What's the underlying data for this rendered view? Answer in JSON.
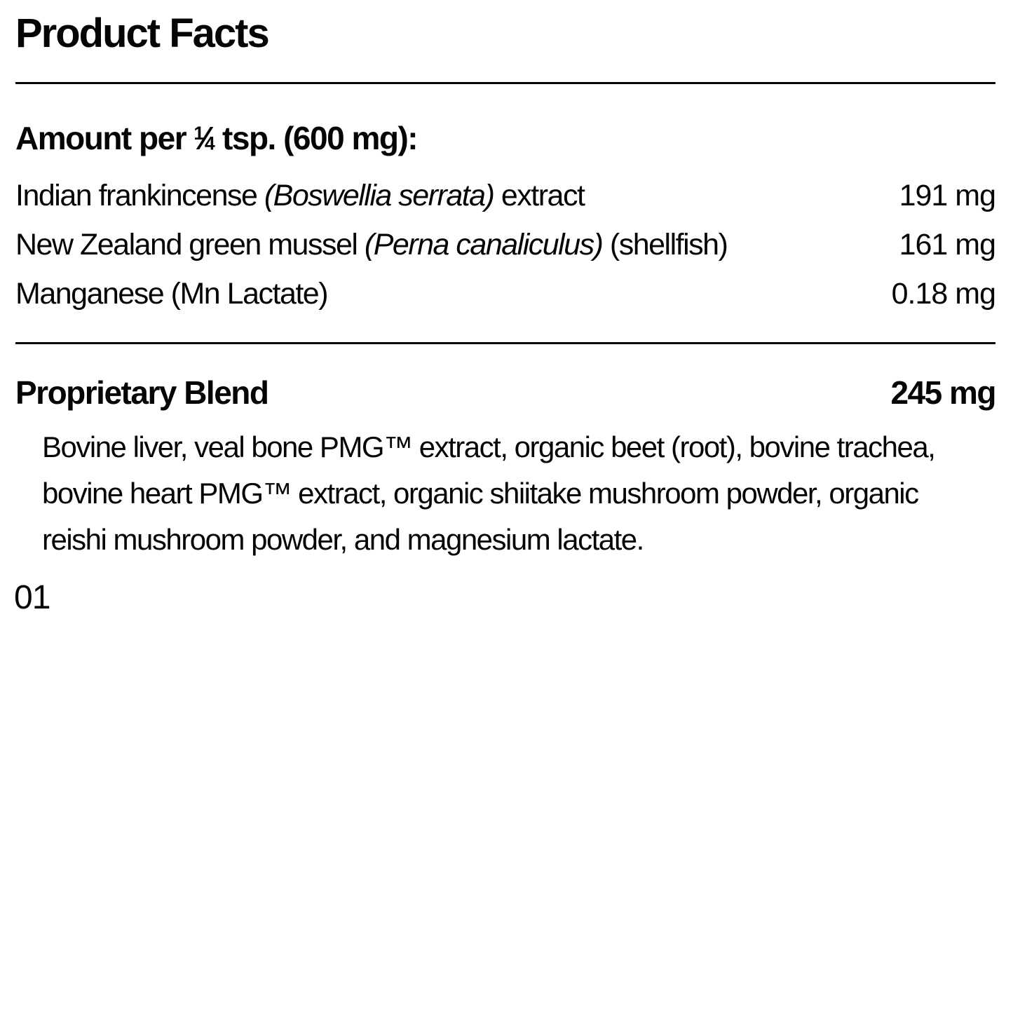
{
  "product_facts": {
    "title": "Product Facts",
    "serving": {
      "prefix": "Amount per ",
      "fraction_numerator": "1",
      "fraction_slash": "⁄",
      "fraction_denominator": "4",
      "suffix": " tsp. (600 mg):"
    },
    "ingredients": [
      {
        "name_regular_1": "Indian frankincense ",
        "name_italic": "(Boswellia serrata)",
        "name_regular_2": " extract",
        "amount": "191 mg"
      },
      {
        "name_regular_1": "New Zealand green mussel ",
        "name_italic": "(Perna canaliculus)",
        "name_regular_2": " (shellfish)",
        "amount": "161 mg"
      },
      {
        "name_regular_1": "Manganese (Mn Lactate)",
        "amount": "0.18 mg"
      }
    ],
    "proprietary_blend": {
      "heading": "Proprietary Blend",
      "amount": "245 mg",
      "description_lines": [
        "Bovine liver, veal bone PMG™ extract, organic beet (root), bovine trachea,",
        "bovine heart PMG™ extract, organic shiitake mushroom powder, organic",
        "reishi mushroom powder, and magnesium lactate."
      ]
    },
    "footer_code": "01"
  }
}
